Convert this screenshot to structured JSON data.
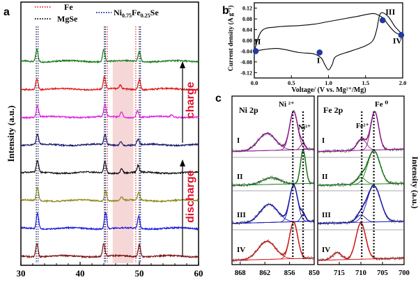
{
  "panels": {
    "a": {
      "letter": "a",
      "chart_data": {
        "type": "line",
        "xlim": [
          30,
          60
        ],
        "x_ticks": [
          30,
          40,
          50,
          60
        ],
        "ylabel": "Intensity (a.u.)",
        "legend": [
          {
            "name": "Fe",
            "color": "#e0383a",
            "style": "dotted"
          },
          {
            "name": "MgSe",
            "color": "#111111",
            "style": "dotted"
          },
          {
            "name": "Ni0.75Fe0.25Se",
            "color": "#1f2fa0",
            "style": "dotted"
          }
        ],
        "reference_lines": {
          "Fe": [
            44.6,
            49.4
          ],
          "MgSe": [
            32.6,
            44.1,
            50.0
          ],
          "Ni0.75Fe0.25Se": [
            32.9,
            44.3,
            50.2
          ]
        },
        "highlight_band": [
          45.5,
          49.0
        ],
        "series": [
          {
            "color": "#1a7a1a",
            "offset": 8,
            "peaks": [
              [
                32.7,
                0.55
              ],
              [
                44.0,
                0.55
              ],
              [
                50.0,
                0.45
              ]
            ]
          },
          {
            "color": "#e01818",
            "offset": 7,
            "peaks": [
              [
                32.7,
                0.5
              ],
              [
                44.1,
                0.55
              ],
              [
                46.8,
                0.15
              ],
              [
                50.0,
                0.45
              ]
            ]
          },
          {
            "color": "#e020e0",
            "offset": 6,
            "peaks": [
              [
                32.8,
                0.5
              ],
              [
                44.2,
                0.55
              ],
              [
                47.0,
                0.25
              ],
              [
                49.7,
                0.3
              ],
              [
                55.5,
                0.1
              ]
            ]
          },
          {
            "color": "#1a1a6e",
            "offset": 5,
            "peaks": [
              [
                32.8,
                0.45
              ],
              [
                44.2,
                0.45
              ],
              [
                46.9,
                0.18
              ],
              [
                49.8,
                0.25
              ]
            ]
          },
          {
            "color": "#111111",
            "offset": 4,
            "peaks": [
              [
                32.8,
                0.5
              ],
              [
                44.2,
                0.5
              ],
              [
                47.0,
                0.2
              ],
              [
                49.8,
                0.3
              ]
            ]
          },
          {
            "color": "#8a8a1a",
            "offset": 3,
            "peaks": [
              [
                32.8,
                0.55
              ],
              [
                44.3,
                0.5
              ],
              [
                47.0,
                0.15
              ],
              [
                49.9,
                0.35
              ]
            ]
          },
          {
            "color": "#1818e0",
            "offset": 2,
            "peaks": [
              [
                32.8,
                0.7
              ],
              [
                44.3,
                0.75
              ],
              [
                49.9,
                0.55
              ]
            ]
          },
          {
            "color": "#7a1010",
            "offset": 1,
            "peaks": [
              [
                32.7,
                0.6
              ],
              [
                44.0,
                0.55
              ],
              [
                50.0,
                0.55
              ]
            ]
          }
        ]
      },
      "annotations": {
        "charge": "charge",
        "discharge": "discharge"
      }
    },
    "b": {
      "letter": "b",
      "chart_data": {
        "type": "line",
        "xlabel": "Voltage/ (V vs. Mg²⁺/Mg)",
        "ylabel": "Current density (A g⁻¹)",
        "xlim": [
          0.0,
          2.0
        ],
        "ylim": [
          -0.14,
          0.14
        ],
        "x_ticks": [
          "0.0",
          "0.5",
          "1.0",
          "1.5",
          "2.0"
        ],
        "y_ticks": [
          "0.12",
          "0.08",
          "0.04",
          "0.00",
          "-0.04",
          "-0.08",
          "-0.12"
        ],
        "x": [
          0.0,
          0.3,
          0.6,
          0.8,
          0.9,
          0.95,
          1.0,
          1.05,
          1.1,
          1.3,
          1.5,
          1.6,
          1.65,
          1.7,
          1.8,
          1.9,
          2.0,
          1.9,
          1.8,
          1.75,
          1.7,
          1.6,
          1.4,
          1.2,
          1.0,
          0.8,
          0.6,
          0.3,
          0.1,
          0.0
        ],
        "y": [
          -0.04,
          -0.03,
          -0.045,
          -0.05,
          -0.065,
          -0.09,
          -0.11,
          -0.09,
          -0.06,
          -0.04,
          -0.02,
          0.0,
          0.04,
          0.1,
          0.09,
          0.05,
          0.02,
          0.03,
          0.06,
          0.08,
          0.09,
          0.1,
          0.09,
          0.08,
          0.07,
          0.06,
          0.055,
          0.05,
          0.035,
          -0.04
        ],
        "points": [
          {
            "label": "I",
            "x": 0.88,
            "y": -0.045
          },
          {
            "label": "II",
            "x": 0.02,
            "y": -0.04
          },
          {
            "label": "III",
            "x": 1.73,
            "y": 0.075
          },
          {
            "label": "IV",
            "x": 1.98,
            "y": 0.02
          }
        ],
        "point_color": "#1f3aa0"
      }
    },
    "c": {
      "letter": "c",
      "ylabel": "Intensity (a.u.)",
      "row_labels": [
        "I",
        "II",
        "III",
        "IV"
      ],
      "ni": {
        "title": "Ni 2p",
        "peak_labels": [
          "Ni ²⁺",
          "Ni³⁺"
        ],
        "x_ticks": [
          "868",
          "862",
          "856",
          "850"
        ],
        "xlim": [
          870,
          850
        ],
        "lines": [
          855.2,
          852.7
        ],
        "rows": [
          {
            "color": "#8a1a8a",
            "peaks": [
              [
                855.0,
                1.0,
                1.4
              ],
              [
                861.5,
                0.45,
                3.0
              ],
              [
                852.8,
                0.15,
                0.8
              ]
            ]
          },
          {
            "color": "#1a7a1a",
            "peaks": [
              [
                852.7,
                1.0,
                0.9
              ],
              [
                860.5,
                0.2,
                3.0
              ]
            ]
          },
          {
            "color": "#1818b0",
            "peaks": [
              [
                855.0,
                1.0,
                1.4
              ],
              [
                861.0,
                0.5,
                3.0
              ],
              [
                852.7,
                0.2,
                0.8
              ]
            ]
          },
          {
            "color": "#d01818",
            "peaks": [
              [
                855.0,
                1.0,
                1.4
              ],
              [
                861.5,
                0.5,
                3.0
              ]
            ]
          }
        ]
      },
      "fe": {
        "title": "Fe 2p",
        "peak_labels": [
          "Fe²⁺",
          "Fe ⁰"
        ],
        "x_ticks": [
          "715",
          "710",
          "705",
          "700"
        ],
        "xlim": [
          720,
          700
        ],
        "lines": [
          709.8,
          707.0
        ],
        "rows": [
          {
            "color": "#8a1a8a",
            "peaks": [
              [
                706.8,
                1.0,
                1.3
              ],
              [
                709.8,
                0.3,
                1.5
              ]
            ]
          },
          {
            "color": "#1a7a1a",
            "peaks": [
              [
                707.0,
                1.0,
                2.0
              ],
              [
                710.0,
                0.2,
                1.5
              ]
            ]
          },
          {
            "color": "#1818b0",
            "peaks": [
              [
                707.0,
                1.0,
                2.2
              ],
              [
                710.0,
                0.2,
                1.5
              ]
            ]
          },
          {
            "color": "#d01818",
            "peaks": [
              [
                710.0,
                1.0,
                1.6
              ],
              [
                715.5,
                0.2,
                1.5
              ]
            ]
          }
        ]
      }
    }
  }
}
